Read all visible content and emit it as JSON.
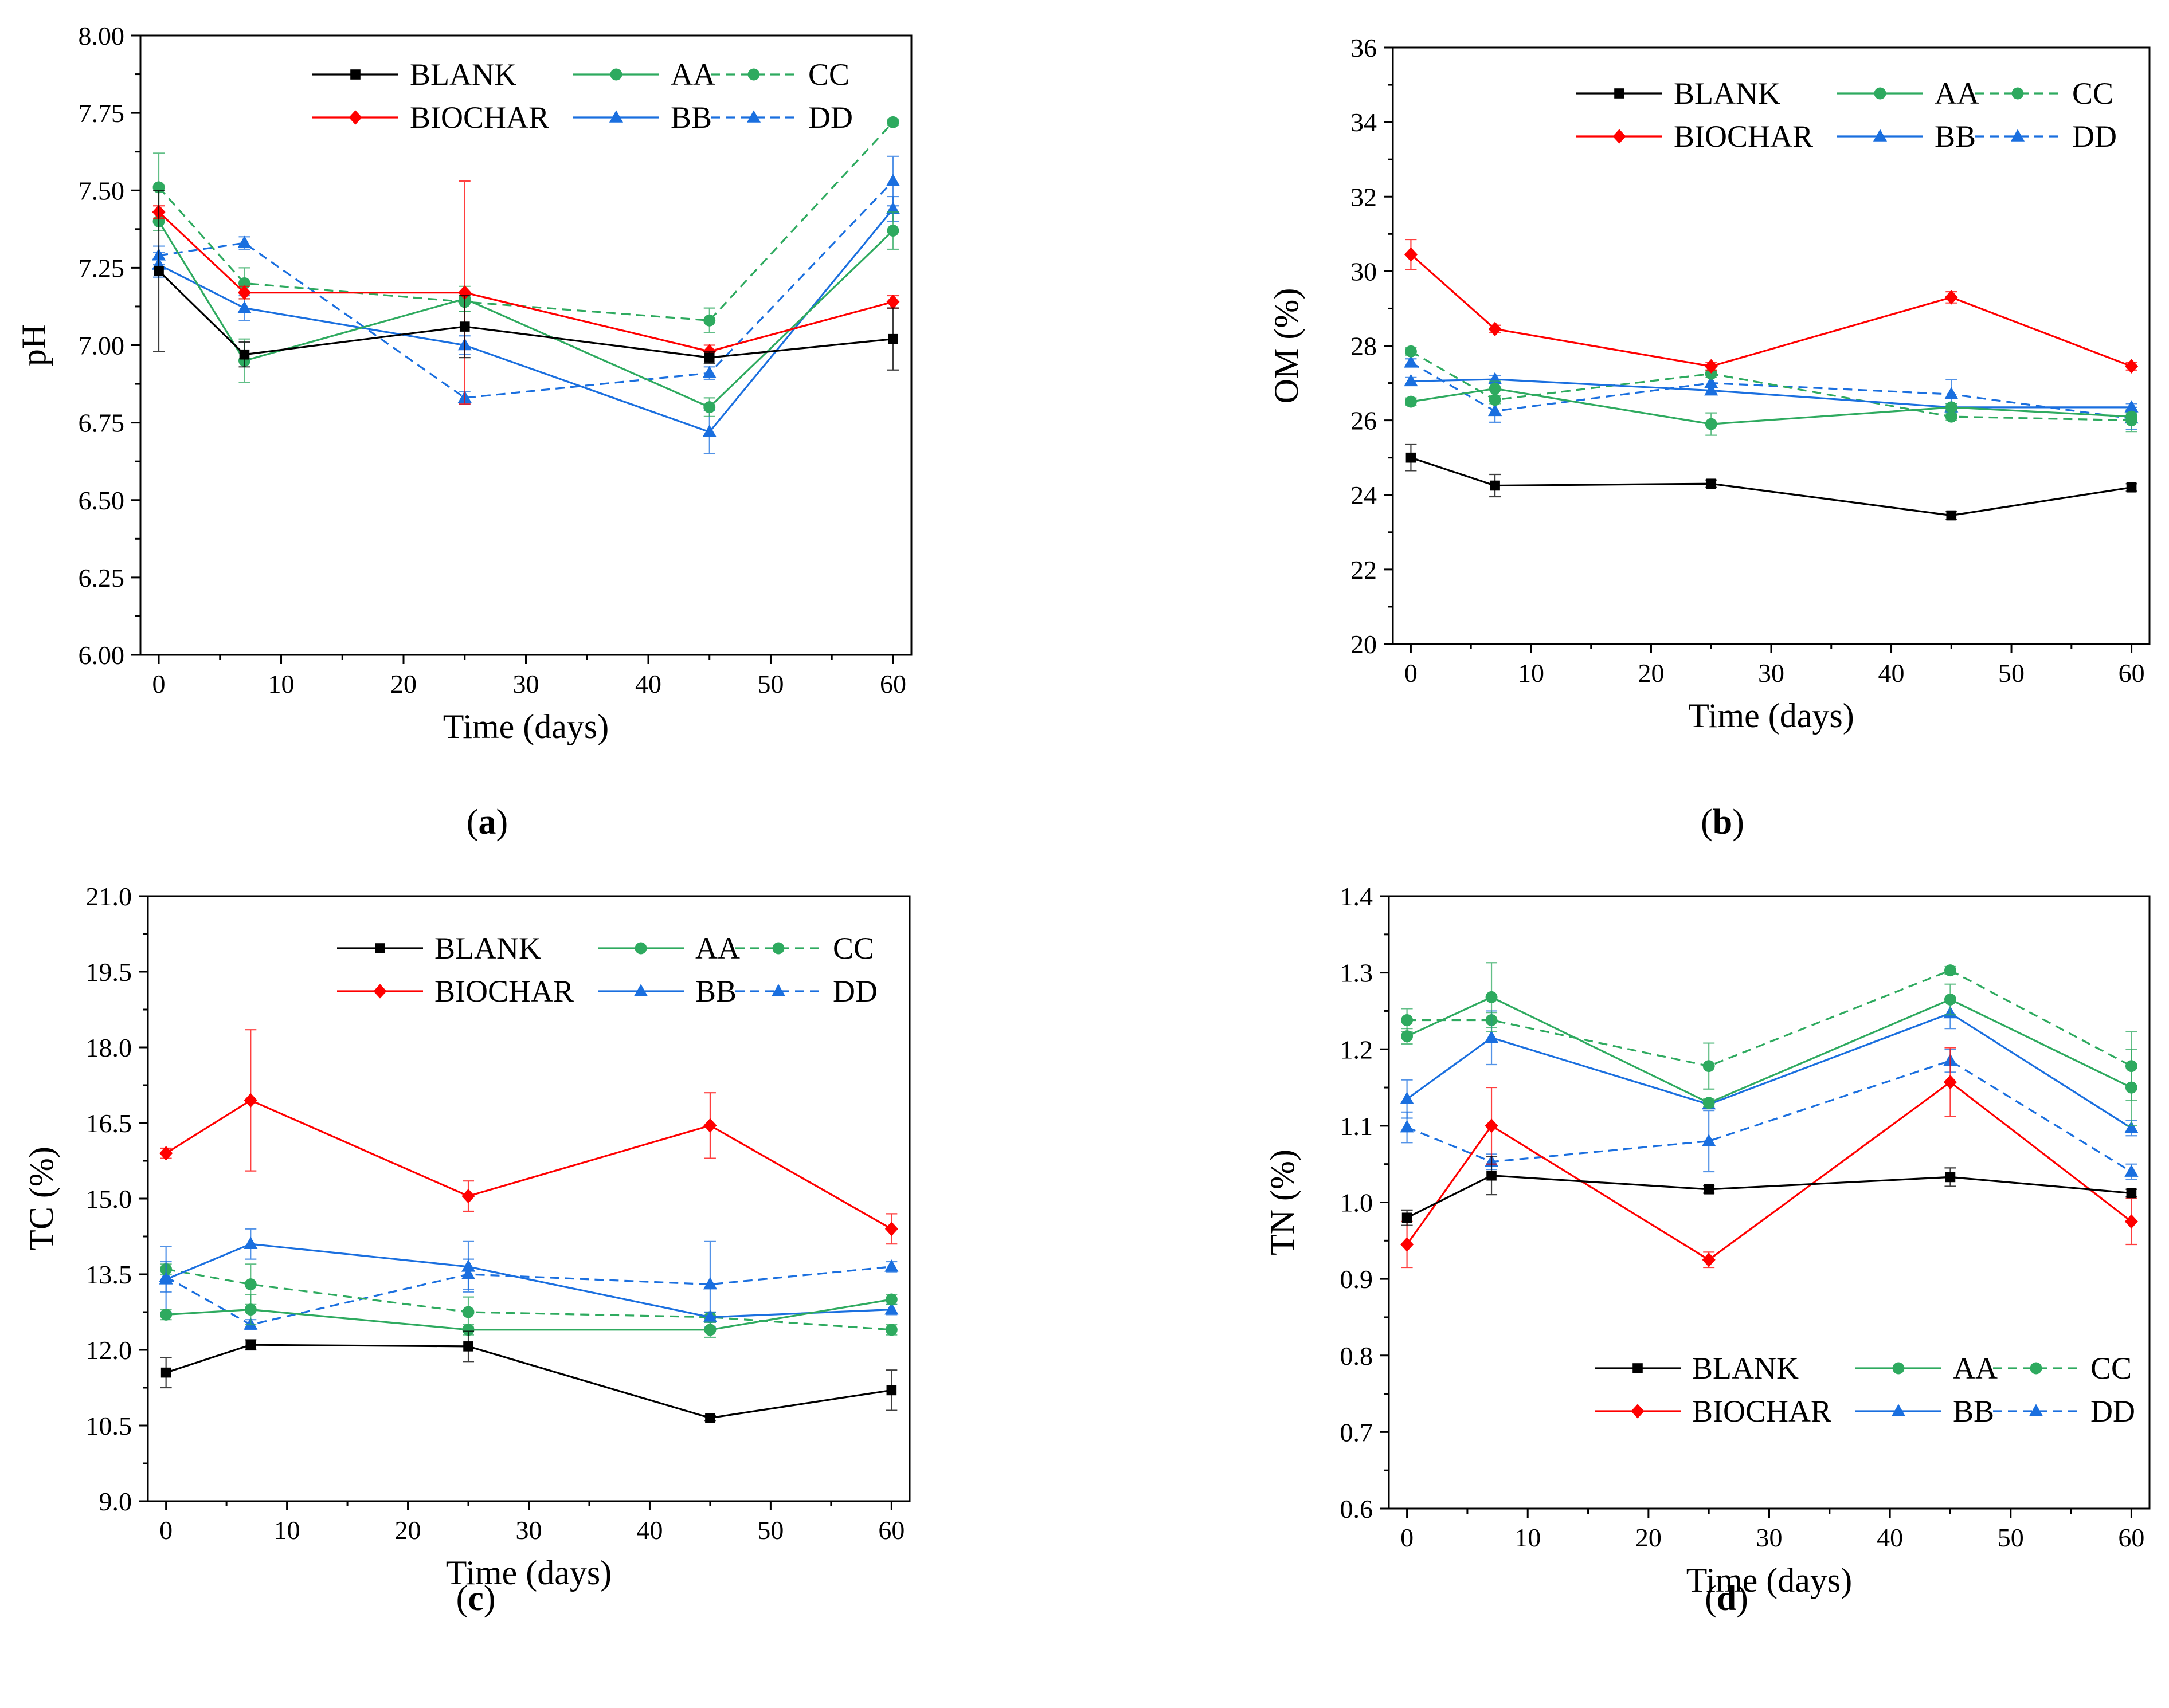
{
  "figure": {
    "series_styles": [
      {
        "name": "BLANK",
        "color": "#000000",
        "marker": "square",
        "dashed": false
      },
      {
        "name": "BIOCHAR",
        "color": "#ff0000",
        "marker": "diamond",
        "dashed": false
      },
      {
        "name": "AA",
        "color": "#2eaa5f",
        "marker": "circle",
        "dashed": false
      },
      {
        "name": "BB",
        "color": "#1a6fdf",
        "marker": "triangle",
        "dashed": false
      },
      {
        "name": "CC",
        "color": "#2eaa5f",
        "marker": "circle",
        "dashed": true
      },
      {
        "name": "DD",
        "color": "#1a6fdf",
        "marker": "triangle",
        "dashed": true
      }
    ]
  },
  "chart_data": [
    {
      "id": "a",
      "panel_label": "a",
      "type": "line",
      "xlabel": "Time (days)",
      "ylabel": "pH",
      "xlim": [
        -1.5,
        61.5
      ],
      "ylim": [
        6.0,
        8.0
      ],
      "xticks": [
        0,
        10,
        20,
        30,
        40,
        50,
        60
      ],
      "xticklabels": [
        "0",
        "10",
        "20",
        "30",
        "40",
        "50",
        "60"
      ],
      "yticks": [
        6.0,
        6.25,
        6.5,
        6.75,
        7.0,
        7.25,
        7.5,
        7.75,
        8.0
      ],
      "yticklabels": [
        "6.00",
        "6.25",
        "6.50",
        "6.75",
        "7.00",
        "7.25",
        "7.50",
        "7.75",
        "8.00"
      ],
      "legend_position": "top-right",
      "x": [
        0,
        7,
        25,
        45,
        60
      ],
      "series": [
        {
          "name": "BLANK",
          "values": [
            7.24,
            6.97,
            7.06,
            6.96,
            7.02
          ],
          "errors": [
            0.26,
            0.04,
            0.1,
            0.02,
            0.1
          ]
        },
        {
          "name": "BIOCHAR",
          "values": [
            7.43,
            7.17,
            7.17,
            6.98,
            7.14
          ],
          "errors": [
            0.02,
            0.02,
            0.36,
            0.02,
            0.02
          ]
        },
        {
          "name": "AA",
          "values": [
            7.4,
            6.95,
            7.15,
            6.8,
            7.37
          ],
          "errors": [
            0.03,
            0.07,
            0.04,
            0.03,
            0.06
          ]
        },
        {
          "name": "BB",
          "values": [
            7.26,
            7.12,
            7.0,
            6.72,
            7.44
          ],
          "errors": [
            0.04,
            0.04,
            0.03,
            0.07,
            0.04
          ]
        },
        {
          "name": "CC",
          "values": [
            7.51,
            7.2,
            7.14,
            7.08,
            7.72
          ],
          "errors": [
            0.11,
            0.05,
            0.03,
            0.04,
            0.01
          ]
        },
        {
          "name": "DD",
          "values": [
            7.29,
            7.33,
            6.83,
            6.91,
            7.53
          ],
          "errors": [
            0.03,
            0.02,
            0.02,
            0.02,
            0.08
          ]
        }
      ]
    },
    {
      "id": "b",
      "panel_label": "b",
      "type": "line",
      "xlabel": "Time (days)",
      "ylabel": "OM (%)",
      "xlim": [
        -1.5,
        61.5
      ],
      "ylim": [
        20,
        36
      ],
      "xticks": [
        0,
        10,
        20,
        30,
        40,
        50,
        60
      ],
      "xticklabels": [
        "0",
        "10",
        "20",
        "30",
        "40",
        "50",
        "60"
      ],
      "yticks": [
        20,
        22,
        24,
        26,
        28,
        30,
        32,
        34,
        36
      ],
      "yticklabels": [
        "20",
        "22",
        "24",
        "26",
        "28",
        "30",
        "32",
        "34",
        "36"
      ],
      "legend_position": "top-right",
      "x": [
        0,
        7,
        25,
        45,
        60
      ],
      "series": [
        {
          "name": "BLANK",
          "values": [
            25.0,
            24.25,
            24.3,
            23.45,
            24.2
          ],
          "errors": [
            0.35,
            0.3,
            0.1,
            0.1,
            0.1
          ]
        },
        {
          "name": "BIOCHAR",
          "values": [
            30.45,
            28.45,
            27.45,
            29.3,
            27.45
          ],
          "errors": [
            0.4,
            0.1,
            0.1,
            0.15,
            0.1
          ]
        },
        {
          "name": "AA",
          "values": [
            26.5,
            26.85,
            25.9,
            26.35,
            26.1
          ],
          "errors": [
            0.1,
            0.2,
            0.3,
            0.1,
            0.1
          ]
        },
        {
          "name": "BB",
          "values": [
            27.05,
            27.1,
            26.8,
            26.35,
            26.35
          ],
          "errors": [
            0.1,
            0.1,
            0.1,
            0.1,
            0.1
          ]
        },
        {
          "name": "CC",
          "values": [
            27.85,
            26.55,
            27.25,
            26.1,
            26.0
          ],
          "errors": [
            0.1,
            0.1,
            0.1,
            0.1,
            0.3
          ]
        },
        {
          "name": "DD",
          "values": [
            27.55,
            26.25,
            27.0,
            26.7,
            26.05
          ],
          "errors": [
            0.1,
            0.3,
            0.2,
            0.4,
            0.3
          ]
        }
      ]
    },
    {
      "id": "c",
      "panel_label": "c",
      "type": "line",
      "xlabel": "Time (days)",
      "ylabel": "TC (%)",
      "xlim": [
        -1.5,
        61.5
      ],
      "ylim": [
        9.0,
        21.0
      ],
      "xticks": [
        0,
        10,
        20,
        30,
        40,
        50,
        60
      ],
      "xticklabels": [
        "0",
        "10",
        "20",
        "30",
        "40",
        "50",
        "60"
      ],
      "yticks": [
        9.0,
        10.5,
        12.0,
        13.5,
        15.0,
        16.5,
        18.0,
        19.5,
        21.0
      ],
      "yticklabels": [
        "9.0",
        "10.5",
        "12.0",
        "13.5",
        "15.0",
        "16.5",
        "18.0",
        "19.5",
        "21.0"
      ],
      "legend_position": "top-right",
      "x": [
        0,
        7,
        25,
        45,
        60
      ],
      "series": [
        {
          "name": "BLANK",
          "values": [
            11.55,
            12.1,
            12.07,
            10.65,
            11.2
          ],
          "errors": [
            0.3,
            0.1,
            0.3,
            0.05,
            0.4
          ]
        },
        {
          "name": "BIOCHAR",
          "values": [
            15.9,
            16.95,
            15.05,
            16.45,
            14.4
          ],
          "errors": [
            0.1,
            1.4,
            0.3,
            0.65,
            0.3
          ]
        },
        {
          "name": "AA",
          "values": [
            12.7,
            12.8,
            12.4,
            12.4,
            13.0
          ],
          "errors": [
            0.1,
            0.3,
            0.1,
            0.15,
            0.1
          ]
        },
        {
          "name": "BB",
          "values": [
            13.4,
            14.1,
            13.65,
            12.65,
            12.8
          ],
          "errors": [
            0.65,
            0.3,
            0.5,
            0.1,
            0.1
          ]
        },
        {
          "name": "CC",
          "values": [
            13.6,
            13.3,
            12.75,
            12.65,
            12.4
          ],
          "errors": [
            0.1,
            0.4,
            0.3,
            0.1,
            0.1
          ]
        },
        {
          "name": "DD",
          "values": [
            13.45,
            12.5,
            13.5,
            13.3,
            13.65
          ],
          "errors": [
            0.3,
            0.1,
            0.3,
            0.85,
            0.1
          ]
        }
      ]
    },
    {
      "id": "d",
      "panel_label": "d",
      "type": "line",
      "xlabel": "Time (days)",
      "ylabel": "TN (%)",
      "xlim": [
        -1.5,
        61.5
      ],
      "ylim": [
        0.6,
        1.4
      ],
      "xticks": [
        0,
        10,
        20,
        30,
        40,
        50,
        60
      ],
      "xticklabels": [
        "0",
        "10",
        "20",
        "30",
        "40",
        "50",
        "60"
      ],
      "yticks": [
        0.6,
        0.7,
        0.8,
        0.9,
        1.0,
        1.1,
        1.2,
        1.3,
        1.4
      ],
      "yticklabels": [
        "0.6",
        "0.7",
        "0.8",
        "0.9",
        "1.0",
        "1.1",
        "1.2",
        "1.3",
        "1.4"
      ],
      "legend_position": "bottom-right",
      "x": [
        0,
        7,
        25,
        45,
        60
      ],
      "series": [
        {
          "name": "BLANK",
          "values": [
            0.98,
            1.035,
            1.017,
            1.033,
            1.012
          ],
          "errors": [
            0.01,
            0.025,
            0.005,
            0.012,
            0.005
          ]
        },
        {
          "name": "BIOCHAR",
          "values": [
            0.945,
            1.1,
            0.925,
            1.157,
            0.975
          ],
          "errors": [
            0.03,
            0.05,
            0.01,
            0.045,
            0.03
          ]
        },
        {
          "name": "AA",
          "values": [
            1.217,
            1.268,
            1.13,
            1.265,
            1.15
          ],
          "errors": [
            0.01,
            0.045,
            0.005,
            0.02,
            0.05
          ]
        },
        {
          "name": "BB",
          "values": [
            1.135,
            1.215,
            1.128,
            1.247,
            1.097
          ],
          "errors": [
            0.025,
            0.035,
            0.005,
            0.02,
            0.01
          ]
        },
        {
          "name": "CC",
          "values": [
            1.238,
            1.238,
            1.178,
            1.303,
            1.178
          ],
          "errors": [
            0.015,
            0.01,
            0.03,
            0.005,
            0.045
          ]
        },
        {
          "name": "DD",
          "values": [
            1.098,
            1.053,
            1.08,
            1.185,
            1.04
          ],
          "errors": [
            0.02,
            0.01,
            0.04,
            0.015,
            0.01
          ]
        }
      ]
    }
  ]
}
